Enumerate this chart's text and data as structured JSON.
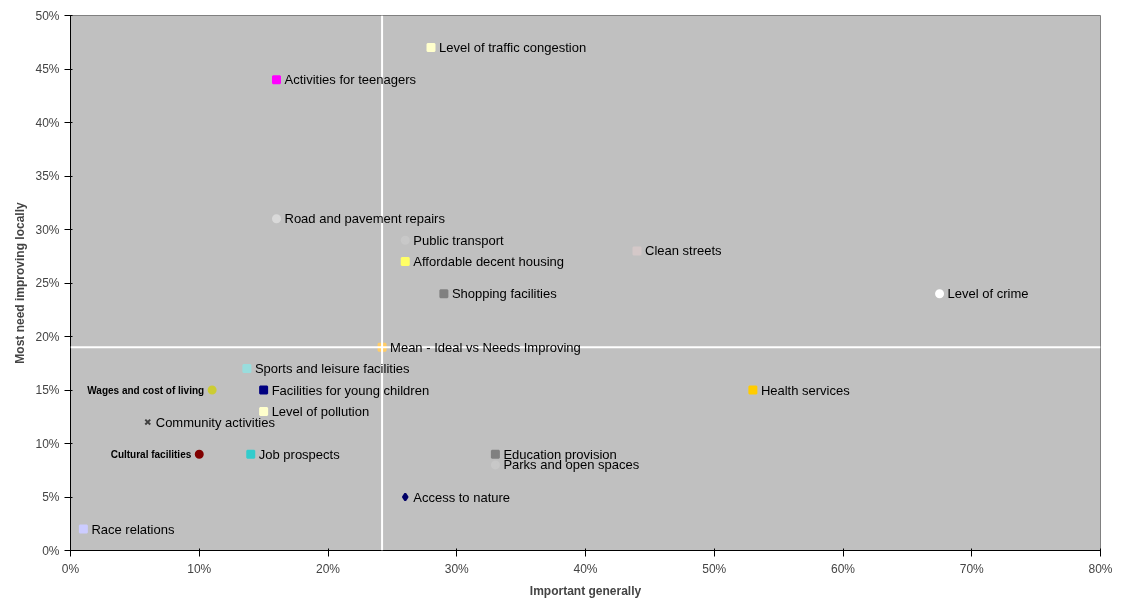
{
  "chart_data": {
    "type": "scatter",
    "xlabel": "Important generally",
    "ylabel": "Most need improving locally",
    "xlim": [
      0,
      80
    ],
    "ylim": [
      0,
      50
    ],
    "xticks": [
      {
        "value": 0,
        "label": "0%"
      },
      {
        "value": 10,
        "label": "10%"
      },
      {
        "value": 20,
        "label": "20%"
      },
      {
        "value": 30,
        "label": "30%"
      },
      {
        "value": 40,
        "label": "40%"
      },
      {
        "value": 50,
        "label": "50%"
      },
      {
        "value": 60,
        "label": "60%"
      },
      {
        "value": 70,
        "label": "70%"
      },
      {
        "value": 80,
        "label": "80%"
      }
    ],
    "yticks": [
      {
        "value": 0,
        "label": "0%"
      },
      {
        "value": 5,
        "label": "5%"
      },
      {
        "value": 10,
        "label": "10%"
      },
      {
        "value": 15,
        "label": "15%"
      },
      {
        "value": 20,
        "label": "20%"
      },
      {
        "value": 25,
        "label": "25%"
      },
      {
        "value": 30,
        "label": "30%"
      },
      {
        "value": 35,
        "label": "35%"
      },
      {
        "value": 40,
        "label": "40%"
      },
      {
        "value": 45,
        "label": "45%"
      },
      {
        "value": 50,
        "label": "50%"
      }
    ],
    "grid": false,
    "ref_lines": [
      {
        "axis": "x",
        "value": 24.2,
        "color": "#ffffff"
      },
      {
        "axis": "y",
        "value": 19,
        "color": "#ffffff"
      }
    ],
    "series": [
      {
        "name": "Level of traffic congestion",
        "color": "#ffffcc",
        "marker": "square",
        "x": [
          28
        ],
        "values": [
          47
        ]
      },
      {
        "name": "Activities for teenagers",
        "color": "#ff00ff",
        "marker": "square",
        "x": [
          16
        ],
        "values": [
          44
        ]
      },
      {
        "name": "Road and pavement repairs",
        "color": "#d9d9d9",
        "marker": "circle",
        "x": [
          16
        ],
        "values": [
          31
        ]
      },
      {
        "name": "Public transport",
        "color": "#c8c8c8",
        "marker": "circle",
        "x": [
          26
        ],
        "values": [
          29
        ]
      },
      {
        "name": "Affordable decent housing",
        "color": "#ffff66",
        "marker": "square",
        "x": [
          26
        ],
        "values": [
          27
        ]
      },
      {
        "name": "Shopping facilities",
        "color": "#808080",
        "marker": "square",
        "x": [
          29
        ],
        "values": [
          24
        ]
      },
      {
        "name": "Clean streets",
        "color": "#d4c8c8",
        "marker": "square",
        "x": [
          44
        ],
        "values": [
          28
        ]
      },
      {
        "name": "Level of crime",
        "color": "#ffffff",
        "marker": "circle",
        "x": [
          67.5
        ],
        "values": [
          24
        ]
      },
      {
        "name": "Mean - Ideal vs Needs Improving",
        "color": "#ffcc66",
        "marker": "square",
        "x": [
          24.2
        ],
        "values": [
          19
        ]
      },
      {
        "name": "Sports and leisure facilities",
        "color": "#99dddd",
        "marker": "square",
        "x": [
          13.7
        ],
        "values": [
          17
        ]
      },
      {
        "name": "Wages and cost of living",
        "color": "#cccc33",
        "marker": "circle",
        "x": [
          11
        ],
        "values": [
          15
        ]
      },
      {
        "name": "Facilities for young children",
        "color": "#000080",
        "marker": "square",
        "x": [
          15
        ],
        "values": [
          15
        ]
      },
      {
        "name": "Level of pollution",
        "color": "#ffffcc",
        "marker": "square",
        "x": [
          15
        ],
        "values": [
          13
        ]
      },
      {
        "name": "Community activities",
        "color": "#404040",
        "marker": "cross",
        "x": [
          6
        ],
        "values": [
          12
        ]
      },
      {
        "name": "Cultural facilities",
        "color": "#800000",
        "marker": "circle",
        "x": [
          10
        ],
        "values": [
          9
        ]
      },
      {
        "name": "Job prospects",
        "color": "#33cccc",
        "marker": "square",
        "x": [
          14
        ],
        "values": [
          9
        ]
      },
      {
        "name": "Education provision",
        "color": "#808080",
        "marker": "square",
        "x": [
          33
        ],
        "values": [
          9
        ]
      },
      {
        "name": "Parks and open spaces",
        "color": "#c8c8c8",
        "marker": "circle",
        "x": [
          33
        ],
        "values": [
          8
        ]
      },
      {
        "name": "Access to nature",
        "color": "#000066",
        "marker": "diamond",
        "x": [
          26
        ],
        "values": [
          5
        ]
      },
      {
        "name": "Race relations",
        "color": "#ccccff",
        "marker": "square",
        "x": [
          1
        ],
        "values": [
          2
        ]
      },
      {
        "name": "Health services",
        "color": "#ffcc00",
        "marker": "square",
        "x": [
          53
        ],
        "values": [
          15
        ]
      }
    ]
  }
}
